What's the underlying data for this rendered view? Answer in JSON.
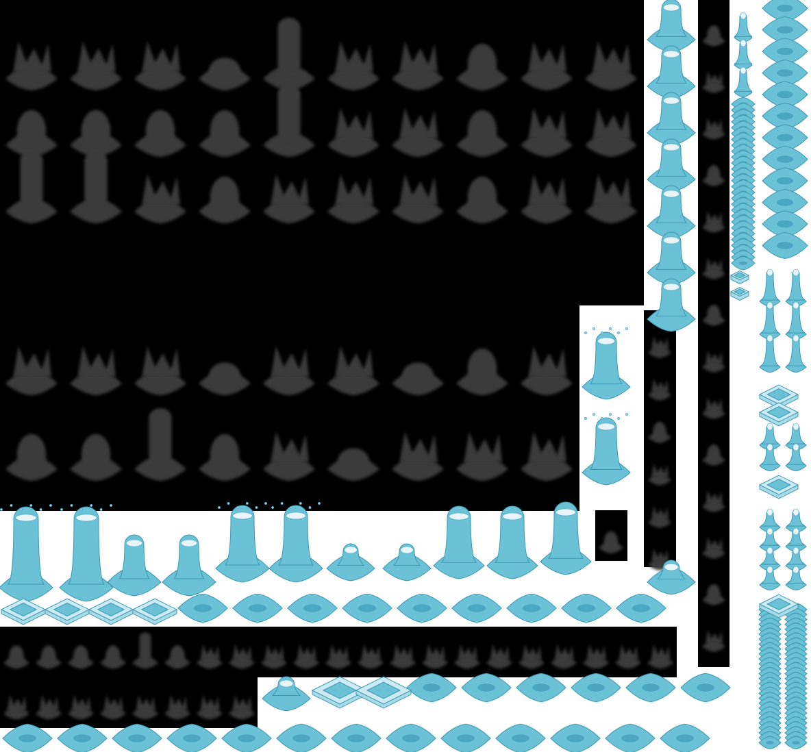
{
  "sheet": {
    "background": "#ffffff",
    "panel_color": "#000000",
    "shadow_color": "#3b3b3b",
    "water_color": "#6bc1d6",
    "water_outline": "#3c98b3",
    "foam_color": "#e8f6fb"
  },
  "sprites": {
    "shadow_frames_large": 50,
    "shadow_frames_small": 33,
    "fountain_frames_row": 10,
    "pool_tiles_row": 12,
    "pool_tiles_bottom": 13,
    "corner_tiles": 4
  }
}
